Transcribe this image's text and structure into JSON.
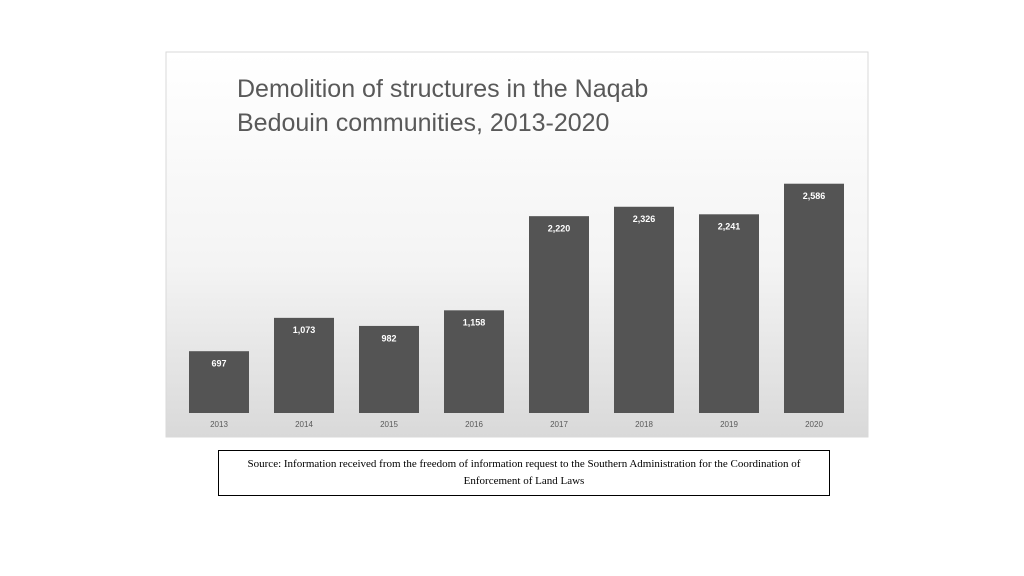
{
  "chart_data": {
    "type": "bar",
    "title": "Demolition of structures in the Naqab Bedouin communities, 2013-2020",
    "categories": [
      "2013",
      "2014",
      "2015",
      "2016",
      "2017",
      "2018",
      "2019",
      "2020"
    ],
    "values": [
      697,
      1073,
      982,
      1158,
      2220,
      2326,
      2241,
      2586
    ],
    "value_labels": [
      "697",
      "1,073",
      "982",
      "1,158",
      "2,220",
      "2,326",
      "2,241",
      "2,586"
    ],
    "color": "#545454",
    "ylim": [
      0,
      3000
    ],
    "source": "Source: Information received from the freedom of information request to the Southern Administration for the Coordination of Enforcement of Land Laws"
  }
}
